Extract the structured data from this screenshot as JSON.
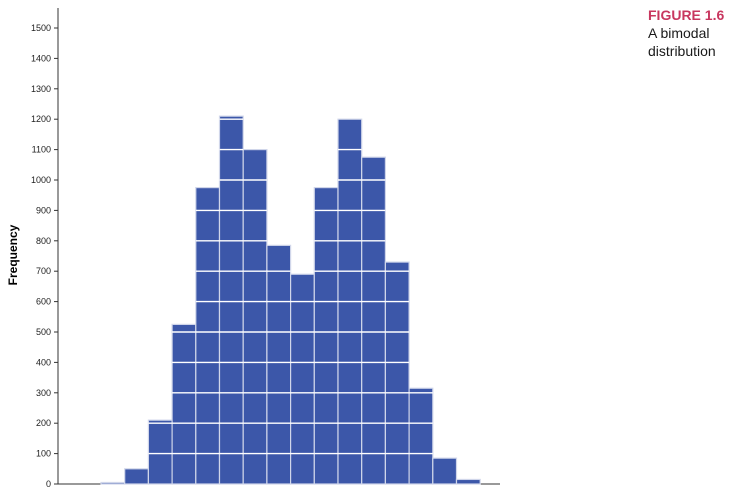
{
  "figure": {
    "label": "FIGURE 1.6",
    "caption": "A bimodal distribution"
  },
  "chart_data": {
    "type": "bar",
    "title": "",
    "xlabel": "",
    "ylabel": "Frequency",
    "ylim": [
      0,
      1550
    ],
    "yticks": [
      0,
      100,
      200,
      300,
      400,
      500,
      600,
      700,
      800,
      900,
      1000,
      1100,
      1200,
      1300,
      1400,
      1500
    ],
    "values": [
      5,
      50,
      210,
      525,
      975,
      1210,
      1100,
      785,
      690,
      975,
      1200,
      1075,
      730,
      315,
      85,
      15
    ],
    "grid": "horizontal white lines through bars",
    "legend": "none",
    "colors": {
      "bar": "#3c57a9",
      "bar_edge": "#d0d6ea",
      "axis": "#333333"
    }
  }
}
